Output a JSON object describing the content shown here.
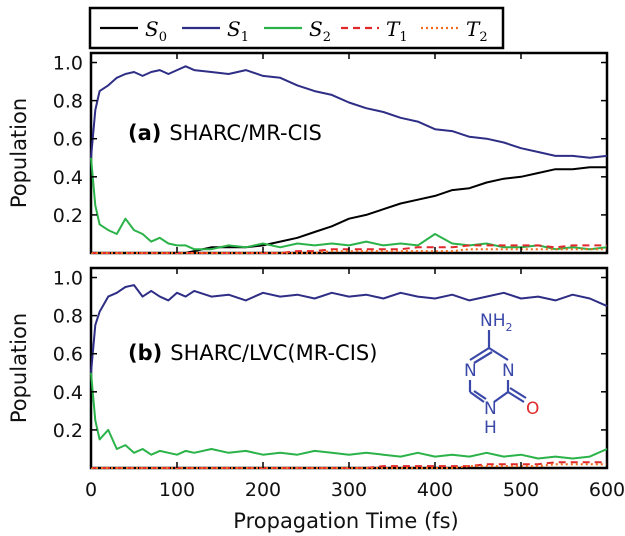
{
  "colors": {
    "S0": "#000000",
    "S1": "#2e2e86",
    "S2": "#2bb34a",
    "T1": "#e0292b",
    "T2": "#f26a1b",
    "N_atom": "#3a48a8",
    "O_atom": "#e0292b"
  },
  "chart_data": [
    {
      "type": "line",
      "panel_label_bold": "(a)",
      "panel_label_text": "SHARC/MR-CIS",
      "ylabel": "Population",
      "xlim": [
        0,
        600
      ],
      "ylim": [
        0,
        1.05
      ],
      "yticks": [
        "0.2",
        "0.4",
        "0.6",
        "0.8",
        "1.0"
      ],
      "ytick_values": [
        0.2,
        0.4,
        0.6,
        0.8,
        1.0
      ],
      "x": [
        0,
        5,
        10,
        20,
        30,
        40,
        50,
        60,
        70,
        80,
        90,
        100,
        110,
        120,
        140,
        160,
        180,
        200,
        220,
        240,
        260,
        280,
        300,
        320,
        340,
        360,
        380,
        400,
        420,
        440,
        460,
        480,
        500,
        520,
        540,
        560,
        580,
        600
      ],
      "series": [
        {
          "name": "S0",
          "style": "solid",
          "values": [
            0,
            0,
            0,
            0,
            0,
            0,
            0,
            0,
            0,
            0,
            0,
            0,
            0,
            0.01,
            0.03,
            0.03,
            0.03,
            0.04,
            0.06,
            0.08,
            0.11,
            0.14,
            0.18,
            0.2,
            0.23,
            0.26,
            0.28,
            0.3,
            0.33,
            0.34,
            0.37,
            0.39,
            0.4,
            0.42,
            0.44,
            0.44,
            0.45,
            0.45
          ]
        },
        {
          "name": "S1",
          "style": "solid",
          "values": [
            0.5,
            0.75,
            0.85,
            0.88,
            0.92,
            0.94,
            0.95,
            0.93,
            0.95,
            0.96,
            0.94,
            0.96,
            0.98,
            0.96,
            0.95,
            0.94,
            0.96,
            0.93,
            0.92,
            0.88,
            0.85,
            0.83,
            0.79,
            0.76,
            0.74,
            0.71,
            0.69,
            0.65,
            0.64,
            0.61,
            0.6,
            0.58,
            0.55,
            0.53,
            0.51,
            0.51,
            0.5,
            0.51
          ]
        },
        {
          "name": "S2",
          "style": "solid",
          "values": [
            0.5,
            0.25,
            0.15,
            0.12,
            0.1,
            0.18,
            0.12,
            0.1,
            0.06,
            0.08,
            0.05,
            0.04,
            0.04,
            0.02,
            0.02,
            0.04,
            0.03,
            0.05,
            0.03,
            0.05,
            0.04,
            0.05,
            0.04,
            0.06,
            0.04,
            0.05,
            0.04,
            0.1,
            0.05,
            0.04,
            0.05,
            0.03,
            0.03,
            0.04,
            0.02,
            0.03,
            0.02,
            0.03
          ]
        },
        {
          "name": "T1",
          "style": "dashed",
          "values": [
            0,
            0,
            0,
            0,
            0,
            0,
            0,
            0,
            0,
            0,
            0,
            0,
            0,
            0,
            0,
            0,
            0,
            0,
            0,
            0.01,
            0.01,
            0.02,
            0.02,
            0.02,
            0.02,
            0.02,
            0.03,
            0.03,
            0.03,
            0.04,
            0.04,
            0.04,
            0.04,
            0.04,
            0.03,
            0.04,
            0.04,
            0.04
          ]
        },
        {
          "name": "T2",
          "style": "dotted",
          "values": [
            0,
            0,
            0,
            0,
            0,
            0,
            0,
            0,
            0,
            0,
            0,
            0,
            0,
            0,
            0,
            0,
            0,
            0,
            0,
            0,
            0,
            0.01,
            0.01,
            0.01,
            0.01,
            0.01,
            0.01,
            0.01,
            0.01,
            0.02,
            0.02,
            0.02,
            0.02,
            0.02,
            0.02,
            0.02,
            0.02,
            0.02
          ]
        }
      ]
    },
    {
      "type": "line",
      "panel_label_bold": "(b)",
      "panel_label_text": "SHARC/LVC(MR-CIS)",
      "ylabel": "Population",
      "xlabel": "Propagation Time (fs)",
      "xlim": [
        0,
        600
      ],
      "ylim": [
        0,
        1.05
      ],
      "xticks": [
        "0",
        "100",
        "200",
        "300",
        "400",
        "500",
        "600"
      ],
      "xtick_values": [
        0,
        100,
        200,
        300,
        400,
        500,
        600
      ],
      "yticks": [
        "0.2",
        "0.4",
        "0.6",
        "0.8",
        "1.0"
      ],
      "ytick_values": [
        0.2,
        0.4,
        0.6,
        0.8,
        1.0
      ],
      "x": [
        0,
        5,
        10,
        20,
        30,
        40,
        50,
        60,
        70,
        80,
        90,
        100,
        110,
        120,
        140,
        160,
        180,
        200,
        220,
        240,
        260,
        280,
        300,
        320,
        340,
        360,
        380,
        400,
        420,
        440,
        460,
        480,
        500,
        520,
        540,
        560,
        580,
        600
      ],
      "series": [
        {
          "name": "S0",
          "style": "solid",
          "values": [
            0,
            0,
            0,
            0,
            0,
            0,
            0,
            0,
            0,
            0,
            0,
            0,
            0,
            0,
            0,
            0,
            0,
            0,
            0,
            0,
            0,
            0,
            0,
            0,
            0,
            0,
            0,
            0,
            0,
            0,
            0,
            0,
            0,
            0,
            0,
            0,
            0,
            0
          ]
        },
        {
          "name": "S1",
          "style": "solid",
          "values": [
            0.5,
            0.75,
            0.82,
            0.9,
            0.92,
            0.95,
            0.96,
            0.9,
            0.93,
            0.9,
            0.88,
            0.92,
            0.9,
            0.93,
            0.9,
            0.91,
            0.88,
            0.92,
            0.9,
            0.91,
            0.89,
            0.92,
            0.9,
            0.91,
            0.89,
            0.92,
            0.9,
            0.89,
            0.91,
            0.88,
            0.9,
            0.92,
            0.89,
            0.9,
            0.88,
            0.91,
            0.89,
            0.85
          ]
        },
        {
          "name": "S2",
          "style": "solid",
          "values": [
            0.5,
            0.25,
            0.15,
            0.2,
            0.1,
            0.12,
            0.08,
            0.1,
            0.07,
            0.09,
            0.08,
            0.07,
            0.09,
            0.08,
            0.1,
            0.08,
            0.09,
            0.07,
            0.08,
            0.07,
            0.09,
            0.08,
            0.07,
            0.08,
            0.07,
            0.06,
            0.08,
            0.06,
            0.07,
            0.06,
            0.08,
            0.06,
            0.07,
            0.05,
            0.06,
            0.05,
            0.06,
            0.1
          ]
        },
        {
          "name": "T1",
          "style": "dashed",
          "values": [
            0,
            0,
            0,
            0,
            0,
            0,
            0,
            0,
            0,
            0,
            0,
            0,
            0,
            0,
            0,
            0,
            0,
            0,
            0,
            0,
            0,
            0,
            0,
            0,
            0.01,
            0.01,
            0.01,
            0.01,
            0.01,
            0.01,
            0.02,
            0.02,
            0.02,
            0.02,
            0.03,
            0.03,
            0.03,
            0.03
          ]
        },
        {
          "name": "T2",
          "style": "dotted",
          "values": [
            0,
            0,
            0,
            0,
            0,
            0,
            0,
            0,
            0,
            0,
            0,
            0,
            0,
            0,
            0,
            0,
            0,
            0,
            0,
            0,
            0,
            0,
            0,
            0,
            0,
            0,
            0,
            0,
            0,
            0.01,
            0.01,
            0.01,
            0.01,
            0.01,
            0.02,
            0.02,
            0.02,
            0.02
          ]
        }
      ]
    }
  ],
  "legend": {
    "position": "top",
    "entries": [
      {
        "letter": "S",
        "sub": "0",
        "series": "S0",
        "style": "solid"
      },
      {
        "letter": "S",
        "sub": "1",
        "series": "S1",
        "style": "solid"
      },
      {
        "letter": "S",
        "sub": "2",
        "series": "S2",
        "style": "solid"
      },
      {
        "letter": "T",
        "sub": "1",
        "series": "T1",
        "style": "dashed"
      },
      {
        "letter": "T",
        "sub": "2",
        "series": "T2",
        "style": "dotted"
      }
    ]
  },
  "molecule": {
    "amine_label": "NH",
    "amine_sub": "2",
    "n_left": "N",
    "n_right": "N",
    "nh_label": "N",
    "h_label": "H",
    "o_label": "O"
  }
}
